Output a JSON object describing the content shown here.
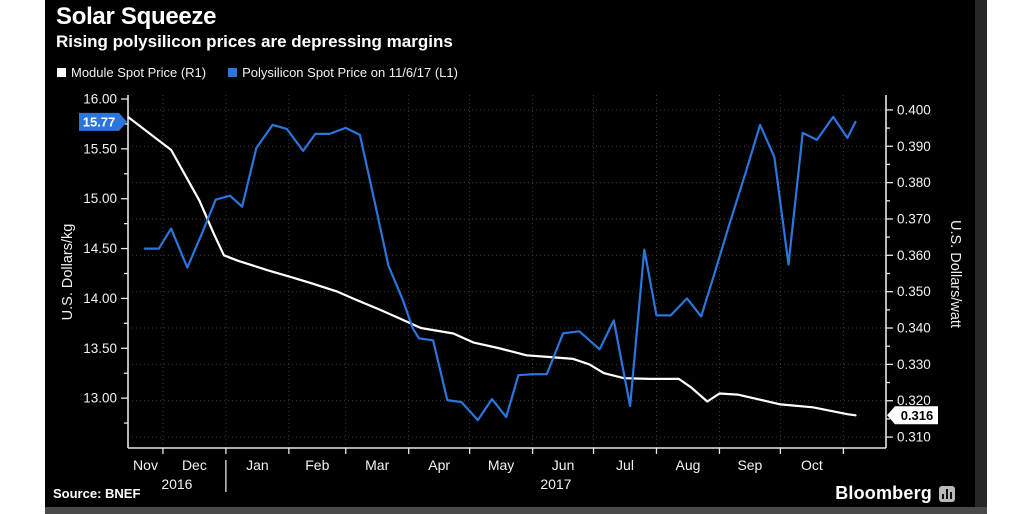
{
  "header": {
    "title": "Solar Squeeze",
    "subtitle": "Rising polysilicon prices are depressing margins"
  },
  "legend": [
    {
      "label": "Module Spot Price (R1)",
      "color": "#ffffff"
    },
    {
      "label": "Polysilicon Spot Price on 11/6/17 (L1)",
      "color": "#2a76dd"
    }
  ],
  "footer": {
    "source": "Source: BNEF",
    "brand": "Bloomberg",
    "brand_icon": "bar-chart-icon"
  },
  "chart_data": {
    "type": "line",
    "background": "#000000",
    "grid": "dotted, horizontal lines at right-axis ticks, vertical lines at month starts",
    "x_unit": "days since 2016-11-01",
    "x_range": [
      12.8,
      386
    ],
    "month_boundaries": [
      30,
      61,
      92,
      120,
      151,
      181,
      212,
      242,
      273,
      304,
      334,
      365
    ],
    "month_labels": [
      {
        "label": "Nov",
        "day": 21.4
      },
      {
        "label": "Dec",
        "day": 45.5
      },
      {
        "label": "Jan",
        "day": 76.5
      },
      {
        "label": "Feb",
        "day": 106
      },
      {
        "label": "Mar",
        "day": 135.5
      },
      {
        "label": "Apr",
        "day": 166
      },
      {
        "label": "May",
        "day": 196.5
      },
      {
        "label": "Jun",
        "day": 227
      },
      {
        "label": "Jul",
        "day": 257.5
      },
      {
        "label": "Aug",
        "day": 288.5
      },
      {
        "label": "Sep",
        "day": 319
      },
      {
        "label": "Oct",
        "day": 349.5
      }
    ],
    "year_labels": [
      {
        "label": "2016",
        "day": 36.9
      },
      {
        "label": "2017",
        "day": 223.5
      }
    ],
    "year_divider_day": 61,
    "left_axis": {
      "title": "U.S. Dollars/kg",
      "min": 12.5,
      "max": 16.0,
      "ticks": [
        16.0,
        15.5,
        15.0,
        14.5,
        14.0,
        13.5,
        13.0
      ],
      "minor_ticks": [
        15.75,
        15.25,
        14.75,
        14.25,
        13.75,
        13.25,
        12.75
      ],
      "decimals": 2
    },
    "right_axis": {
      "title": "U.S. Dollars/watt",
      "min": 0.307,
      "max": 0.403,
      "ticks": [
        0.4,
        0.39,
        0.38,
        0.37,
        0.36,
        0.35,
        0.34,
        0.33,
        0.32,
        0.31
      ],
      "minor_ticks": [
        0.395,
        0.385,
        0.375,
        0.365,
        0.355,
        0.345,
        0.335,
        0.325,
        0.315
      ],
      "decimals": 3
    },
    "series": [
      {
        "name": "Module Spot Price (R1)",
        "id": "module-series-line",
        "axis": "right",
        "color": "#ffffff",
        "last_label": "0.316",
        "last_value": 0.316,
        "tag_bg": "#ffffff",
        "tag_fg": "#000000",
        "points": [
          [
            13,
            0.398
          ],
          [
            20,
            0.395
          ],
          [
            27,
            0.392
          ],
          [
            34,
            0.389
          ],
          [
            41,
            0.382
          ],
          [
            48,
            0.375
          ],
          [
            55,
            0.366
          ],
          [
            60,
            0.36
          ],
          [
            67,
            0.3585
          ],
          [
            81,
            0.356
          ],
          [
            93,
            0.354
          ],
          [
            102,
            0.3525
          ],
          [
            116,
            0.35
          ],
          [
            124,
            0.348
          ],
          [
            137,
            0.345
          ],
          [
            147,
            0.3425
          ],
          [
            157,
            0.34
          ],
          [
            173,
            0.3385
          ],
          [
            183,
            0.336
          ],
          [
            195,
            0.3345
          ],
          [
            209,
            0.3325
          ],
          [
            221,
            0.332
          ],
          [
            232,
            0.3315
          ],
          [
            240,
            0.33
          ],
          [
            247,
            0.3276
          ],
          [
            257,
            0.3262
          ],
          [
            270,
            0.326
          ],
          [
            284,
            0.326
          ],
          [
            290,
            0.3237
          ],
          [
            298,
            0.3198
          ],
          [
            304,
            0.322
          ],
          [
            313,
            0.3217
          ],
          [
            334,
            0.319
          ],
          [
            350,
            0.3182
          ],
          [
            367,
            0.3163
          ],
          [
            371,
            0.316
          ]
        ]
      },
      {
        "name": "Polysilicon Spot Price on 11/6/17 (L1)",
        "id": "polysilicon-series-line",
        "axis": "left",
        "color": "#2a76dd",
        "last_label": "15.77",
        "last_value": 15.77,
        "tag_bg": "#2a76dd",
        "tag_fg": "#ffffff",
        "points": [
          [
            21,
            14.5
          ],
          [
            28,
            14.5
          ],
          [
            34,
            14.7
          ],
          [
            42,
            14.31
          ],
          [
            49,
            14.64
          ],
          [
            56,
            14.99
          ],
          [
            63,
            15.03
          ],
          [
            69,
            14.92
          ],
          [
            76,
            15.51
          ],
          [
            84,
            15.74
          ],
          [
            91,
            15.7
          ],
          [
            99,
            15.48
          ],
          [
            105,
            15.65
          ],
          [
            112,
            15.65
          ],
          [
            120,
            15.71
          ],
          [
            127,
            15.64
          ],
          [
            134,
            14.99
          ],
          [
            141,
            14.33
          ],
          [
            148,
            13.99
          ],
          [
            153,
            13.7
          ],
          [
            156,
            13.6
          ],
          [
            163,
            13.58
          ],
          [
            170,
            12.98
          ],
          [
            177,
            12.96
          ],
          [
            185,
            12.78
          ],
          [
            192,
            12.99
          ],
          [
            199,
            12.81
          ],
          [
            205,
            13.23
          ],
          [
            212,
            13.24
          ],
          [
            219,
            13.24
          ],
          [
            227,
            13.65
          ],
          [
            235,
            13.67
          ],
          [
            245,
            13.49
          ],
          [
            252,
            13.78
          ],
          [
            260,
            12.92
          ],
          [
            267,
            14.49
          ],
          [
            273,
            13.83
          ],
          [
            280,
            13.83
          ],
          [
            288,
            14.0
          ],
          [
            295,
            13.82
          ],
          [
            302,
            14.28
          ],
          [
            309,
            14.75
          ],
          [
            317,
            15.27
          ],
          [
            324,
            15.74
          ],
          [
            331,
            15.42
          ],
          [
            338,
            14.34
          ],
          [
            345,
            15.66
          ],
          [
            352,
            15.59
          ],
          [
            360,
            15.82
          ],
          [
            367,
            15.61
          ],
          [
            371,
            15.77
          ]
        ]
      }
    ]
  }
}
